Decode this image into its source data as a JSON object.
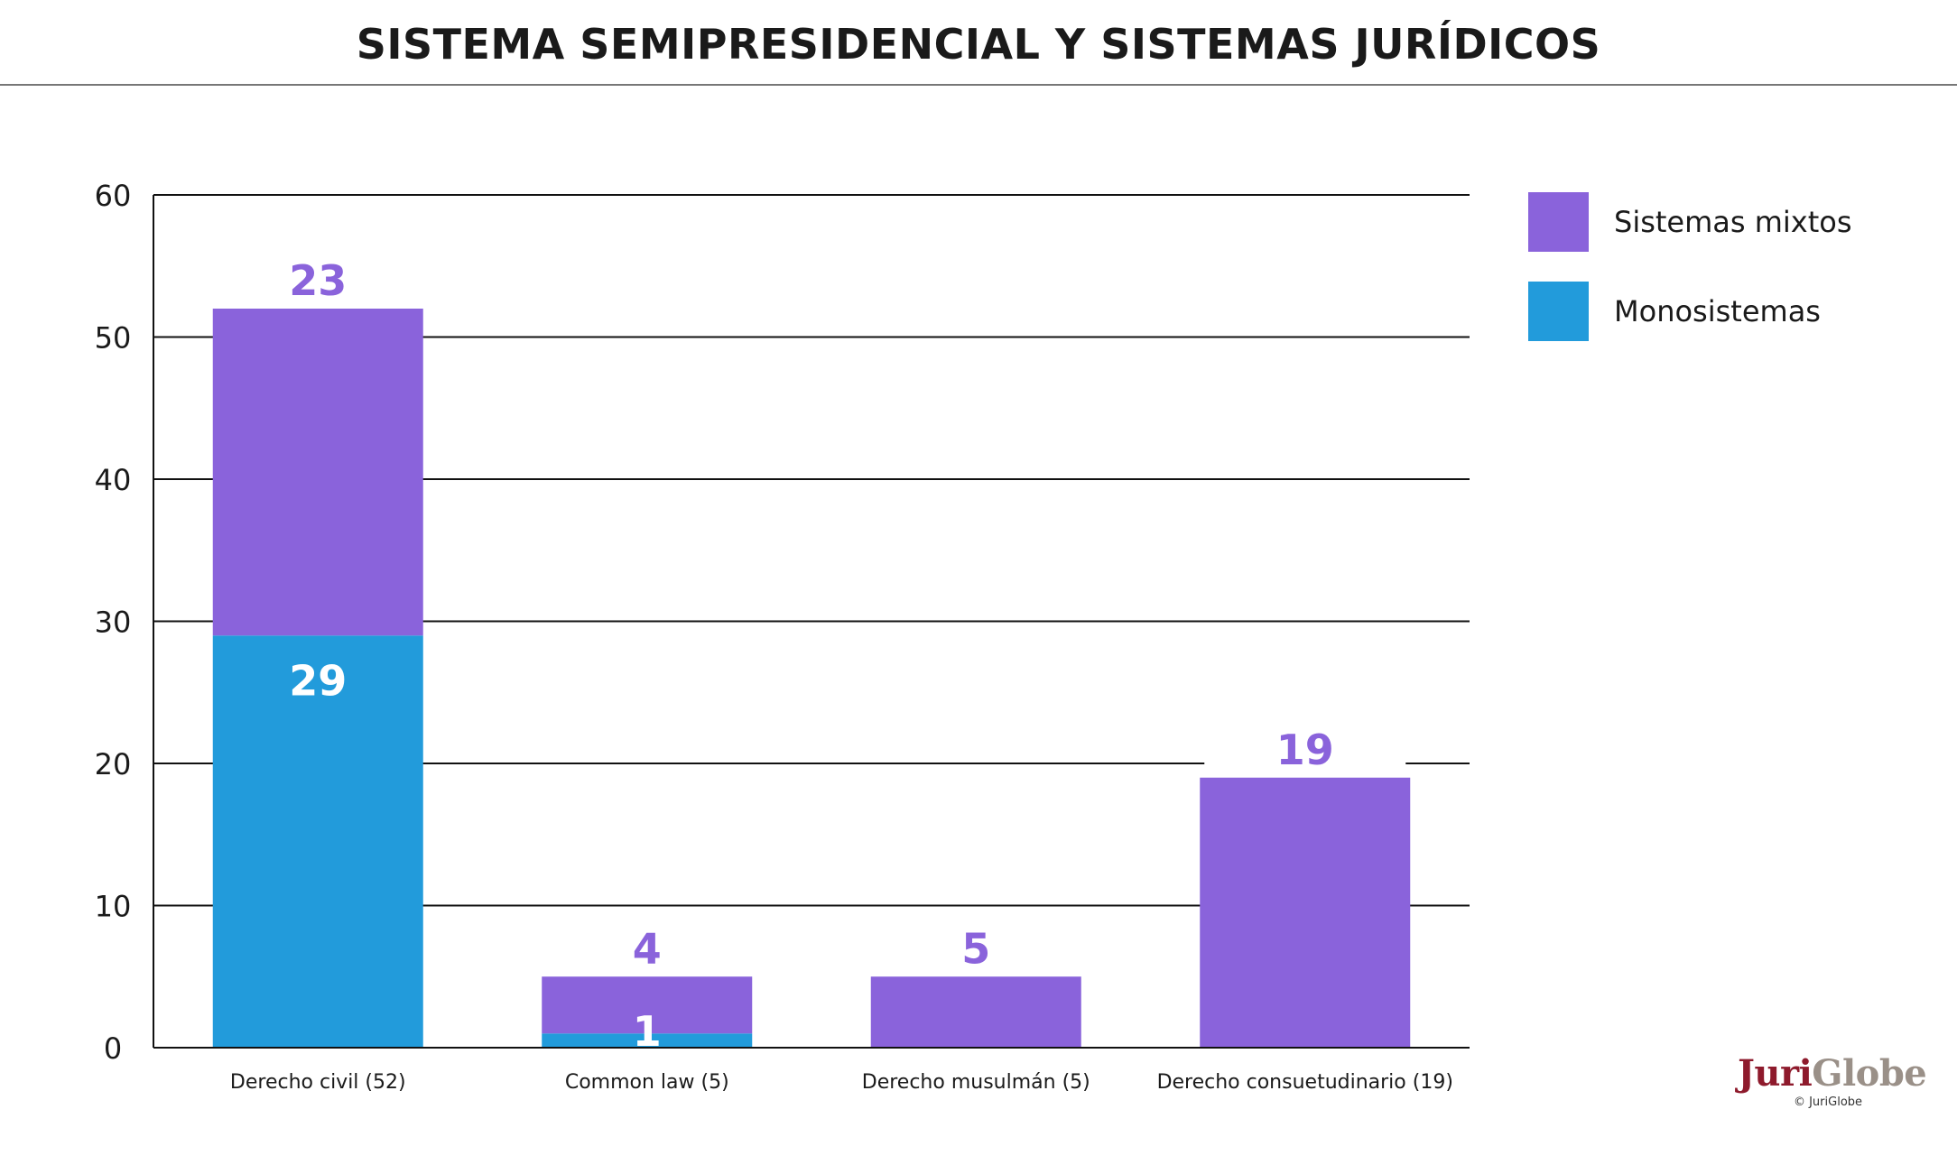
{
  "chart_data": {
    "type": "bar",
    "stacked": true,
    "title": "SISTEMA SEMIPRESIDENCIAL Y SISTEMAS JURÍDICOS",
    "categories": [
      "Derecho civil (52)",
      "Common law (5)",
      "Derecho musulmán (5)",
      "Derecho consuetudinario (19)"
    ],
    "series": [
      {
        "name": "Monosistemas",
        "values": [
          29,
          1,
          0,
          0
        ],
        "color": "#229BDB"
      },
      {
        "name": "Sistemas mixtos",
        "values": [
          23,
          4,
          5,
          19
        ],
        "color": "#8A63DB"
      }
    ],
    "bar_labels": [
      {
        "mixtos": "23",
        "mono": "29"
      },
      {
        "mixtos": "4",
        "mono": "1"
      },
      {
        "mixtos": "5",
        "mono": ""
      },
      {
        "mixtos": "19",
        "mono": ""
      }
    ],
    "yticks": [
      "0",
      "10",
      "20",
      "30",
      "40",
      "50",
      "60"
    ],
    "ylim": [
      0,
      60
    ],
    "grid": true,
    "legend": {
      "position": "top-right",
      "items": [
        {
          "label": "Sistemas mixtos",
          "color": "#8A63DB"
        },
        {
          "label": "Monosistemas",
          "color": "#229BDB"
        }
      ]
    }
  },
  "branding": {
    "logo_part1": "Juri",
    "logo_part2": "Globe",
    "copyright": "© JuriGlobe"
  }
}
